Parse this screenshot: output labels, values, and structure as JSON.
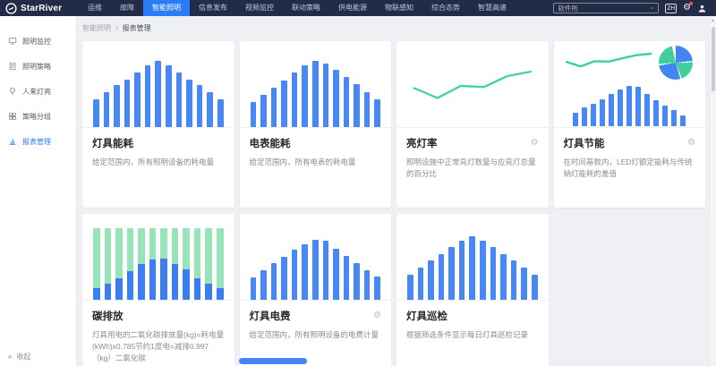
{
  "topbar": {
    "brand": "StarRiver",
    "nav": [
      {
        "label": "运维",
        "active": false
      },
      {
        "label": "故障",
        "active": false
      },
      {
        "label": "智能照明",
        "active": true
      },
      {
        "label": "信息发布",
        "active": false
      },
      {
        "label": "视频监控",
        "active": false
      },
      {
        "label": "联动策略",
        "active": false
      },
      {
        "label": "供电能源",
        "active": false
      },
      {
        "label": "物联感知",
        "active": false
      },
      {
        "label": "综合态势",
        "active": false
      },
      {
        "label": "智慧高速",
        "active": false
      }
    ],
    "workspace_select": {
      "value": "软件所"
    },
    "lang_badge": "ZH"
  },
  "sidebar": {
    "items": [
      {
        "label": "照明监控",
        "icon": "monitor-icon",
        "active": false
      },
      {
        "label": "照明策略",
        "icon": "document-icon",
        "active": false
      },
      {
        "label": "人来灯亮",
        "icon": "bulb-icon",
        "active": false
      },
      {
        "label": "策略分组",
        "icon": "grid-icon",
        "active": false
      },
      {
        "label": "报表管理",
        "icon": "bar-chart-icon",
        "active": true
      }
    ],
    "collapse_label": "收起"
  },
  "breadcrumb": {
    "parent": "智能照明",
    "separator": ">",
    "current": "报表管理"
  },
  "icons": {
    "gear": "⚙",
    "collapse": "«",
    "chevron_down": "⌄",
    "scroll_up_arrow": "▲"
  },
  "colors": {
    "accent": "#2b7cf6",
    "bar_blue": "#4788f4",
    "line_green": "#3cd395",
    "stacked_green": "#97e4b8",
    "stacked_blue": "#3b7ef2",
    "pie_blue": "#4285f4",
    "pie_green": "#41cf9e",
    "topbar_bg": "#232c47",
    "page_bg": "#eef0f4"
  },
  "cards": [
    {
      "title": "灯具能耗",
      "description": "给定范围内，所有照明设备的耗电量",
      "has_gear": false,
      "chart": {
        "type": "bar",
        "color": "#4788f4",
        "values": [
          38,
          48,
          57,
          65,
          75,
          84,
          90,
          84,
          75,
          65,
          57,
          48,
          38
        ]
      }
    },
    {
      "title": "电表能耗",
      "description": "给定范围内，所有电表的耗电量",
      "has_gear": false,
      "chart": {
        "type": "bar",
        "color": "#4788f4",
        "values": [
          34,
          44,
          54,
          64,
          74,
          84,
          90,
          86,
          78,
          68,
          58,
          48,
          38
        ]
      }
    },
    {
      "title": "亮灯率",
      "description": "照明设施中正常亮灯数量与应亮灯总量的百分比",
      "has_gear": true,
      "chart": {
        "type": "line",
        "color": "#3cd395",
        "values": [
          46,
          28,
          50,
          48,
          68,
          76
        ]
      }
    },
    {
      "title": "灯具节能",
      "description": "在时间基数内，LED灯额定能耗与传统钠灯能耗的差值",
      "has_gear": true,
      "chart": {
        "type": "combo",
        "bar_color": "#4788f4",
        "line_color": "#3cd395",
        "bar_values": [
          30,
          42,
          50,
          60,
          72,
          82,
          90,
          88,
          72,
          58,
          45,
          36,
          24
        ],
        "line_values": [
          40,
          28,
          42,
          41,
          50,
          58,
          62
        ],
        "pie": {
          "start_deg": -8,
          "gap_deg": 5,
          "slices": [
            {
              "color": "#4285f4",
              "sweep": 92
            },
            {
              "color": "#41cf9e",
              "sweep": 70
            },
            {
              "color": "#4285f4",
              "sweep": 96
            },
            {
              "color": "#41cf9e",
              "sweep": 82
            }
          ]
        }
      }
    },
    {
      "title": "碳排放",
      "description": "灯具用电的二氧化碳排放量(kg)=耗电量(kWh)x0.785节约1度电=减排0.997（kg）二氧化碳",
      "has_gear": false,
      "chart": {
        "type": "stacked",
        "bottom_color": "#3b7ef2",
        "top_color": "#97e4b8",
        "bottom_pct": [
          16,
          22,
          30,
          40,
          50,
          56,
          57,
          50,
          42,
          30,
          22,
          16
        ]
      }
    },
    {
      "title": "灯具电费",
      "description": "给定范围内，所有照明设备的电费计量",
      "has_gear": true,
      "chart": {
        "type": "bar",
        "color": "#4788f4",
        "values": [
          30,
          40,
          50,
          58,
          68,
          76,
          82,
          80,
          70,
          60,
          50,
          40,
          32
        ]
      }
    },
    {
      "title": "灯具巡检",
      "description": "根据筛选条件显示每日灯具巡检记录",
      "has_gear": false,
      "chart": {
        "type": "bar",
        "color": "#4788f4",
        "values": [
          34,
          44,
          54,
          62,
          72,
          80,
          86,
          80,
          72,
          62,
          54,
          44,
          34
        ]
      }
    }
  ]
}
